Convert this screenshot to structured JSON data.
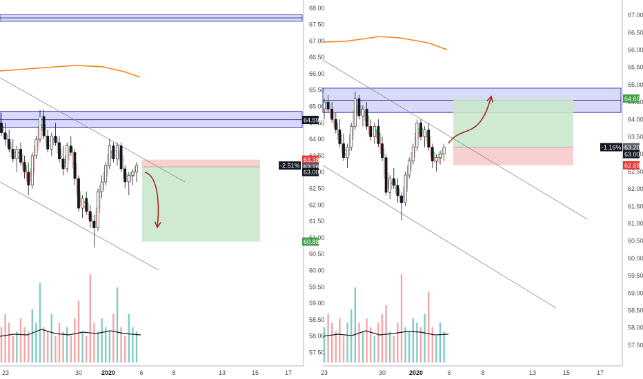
{
  "colors": {
    "up_candle": "#ffffff",
    "down_candle": "#131722",
    "zone_fill": "#b3b5f5",
    "zone_line": "#3f3fa8",
    "ma_orange": "#f57f17",
    "profit_fill": "#c8e6c9",
    "loss_fill": "#f8c8c8",
    "vol_up": "#80cbc4",
    "vol_down": "#f4a6a6",
    "arrow": "#a0281e",
    "tag_red": "#e53935",
    "tag_green": "#43a047",
    "tag_dark": "#131722",
    "tag_grey": "#5d606b"
  },
  "chart_data": [
    {
      "type": "candlestick",
      "panel": "left",
      "y_axis": {
        "ticks": [
          "68.00",
          "67.50",
          "67.00",
          "66.50",
          "66.00",
          "65.50",
          "65.00",
          "64.50",
          "64.00",
          "63.50",
          "63.00",
          "62.50",
          "62.00",
          "61.50",
          "61.00",
          "60.50",
          "60.00",
          "59.50",
          "59.00",
          "58.50",
          "58.00",
          "57.50"
        ],
        "range": [
          57.3,
          68.1
        ]
      },
      "x_axis": {
        "ticks": [
          "23",
          "30",
          "2020",
          "6",
          "8",
          "13",
          "15",
          "17"
        ]
      },
      "price_tags": [
        {
          "label": "63.38",
          "color": "tag_red"
        },
        {
          "label": "63.16",
          "color": "tag_grey"
        },
        {
          "label": "63.00",
          "color": "tag_dark"
        },
        {
          "label": "64.59",
          "color": "tag_dark"
        },
        {
          "label": "60.88",
          "color": "tag_green"
        }
      ],
      "change_label": "-2.51%",
      "resistance_zones": [
        [
          67.6,
          67.8
        ],
        [
          64.35,
          64.85
        ]
      ],
      "position": {
        "direction": "short",
        "entry": 63.16,
        "stop": 63.38,
        "target": 60.88
      },
      "candles": [
        [
          64.5,
          64.8,
          64.1,
          64.2
        ],
        [
          64.2,
          64.5,
          63.8,
          64.0
        ],
        [
          64.0,
          64.3,
          63.6,
          63.7
        ],
        [
          63.7,
          64.0,
          63.3,
          63.4
        ],
        [
          63.4,
          63.8,
          63.0,
          63.7
        ],
        [
          63.7,
          63.9,
          63.2,
          63.3
        ],
        [
          63.3,
          63.5,
          62.8,
          63.0
        ],
        [
          63.0,
          63.3,
          62.3,
          62.6
        ],
        [
          62.6,
          63.6,
          62.5,
          63.5
        ],
        [
          63.5,
          64.1,
          63.4,
          64.0
        ],
        [
          64.0,
          64.9,
          63.9,
          64.7
        ],
        [
          64.7,
          64.9,
          64.0,
          64.1
        ],
        [
          64.1,
          64.3,
          63.6,
          63.7
        ],
        [
          63.7,
          64.2,
          63.5,
          64.1
        ],
        [
          64.1,
          64.5,
          63.8,
          63.9
        ],
        [
          63.9,
          64.1,
          63.3,
          63.4
        ],
        [
          63.4,
          63.8,
          62.9,
          63.1
        ],
        [
          63.1,
          63.9,
          63.0,
          63.8
        ],
        [
          63.8,
          64.1,
          63.5,
          63.6
        ],
        [
          63.6,
          63.7,
          62.6,
          62.8
        ],
        [
          62.8,
          62.9,
          61.8,
          61.9
        ],
        [
          61.9,
          62.3,
          61.6,
          62.2
        ],
        [
          62.2,
          62.4,
          61.7,
          61.8
        ],
        [
          61.8,
          62.0,
          61.3,
          61.5
        ],
        [
          61.5,
          61.7,
          60.7,
          61.3
        ],
        [
          61.3,
          62.5,
          61.2,
          62.4
        ],
        [
          62.4,
          62.9,
          62.2,
          62.7
        ],
        [
          62.7,
          63.3,
          62.6,
          63.2
        ],
        [
          63.2,
          64.0,
          63.1,
          63.8
        ],
        [
          63.8,
          63.9,
          63.3,
          63.4
        ],
        [
          63.4,
          63.9,
          63.2,
          63.8
        ],
        [
          63.8,
          63.9,
          63.0,
          63.1
        ],
        [
          63.1,
          63.2,
          62.5,
          62.7
        ],
        [
          62.7,
          63.0,
          62.3,
          62.9
        ],
        [
          62.9,
          63.1,
          62.6,
          63.0
        ],
        [
          63.0,
          63.3,
          62.7,
          63.2
        ]
      ],
      "volume": [
        0.4,
        0.55,
        0.45,
        0.3,
        0.35,
        0.5,
        0.4,
        0.35,
        0.6,
        0.45,
        0.9,
        0.4,
        0.35,
        0.55,
        0.3,
        0.45,
        0.35,
        0.4,
        0.3,
        0.5,
        0.7,
        0.35,
        0.3,
        1.0,
        0.45,
        0.35,
        0.5,
        0.4,
        0.35,
        0.55,
        0.85,
        0.4,
        0.3,
        0.55,
        0.4,
        0.35
      ]
    },
    {
      "type": "candlestick",
      "panel": "right",
      "y_axis": {
        "ticks": [
          "67.00",
          "66.50",
          "66.00",
          "65.50",
          "65.00",
          "64.50",
          "64.00",
          "63.50",
          "63.00",
          "62.50",
          "62.00",
          "61.50",
          "61.00",
          "60.50",
          "60.00",
          "59.50",
          "59.00",
          "58.50",
          "58.00",
          "57.50"
        ],
        "range": [
          57.2,
          67.2
        ]
      },
      "x_axis": {
        "ticks": [
          "23",
          "30",
          "2020",
          "6",
          "8",
          "13",
          "15",
          "17"
        ]
      },
      "price_tags": [
        {
          "label": "64.60",
          "color": "tag_green"
        },
        {
          "label": "63.20",
          "color": "tag_grey"
        },
        {
          "label": "63.00",
          "color": "tag_dark"
        },
        {
          "label": "62.68",
          "color": "tag_red"
        }
      ],
      "change_label": "-1.16%",
      "resistance_zones": [
        [
          64.2,
          64.9
        ]
      ],
      "position": {
        "direction": "long",
        "entry": 63.2,
        "stop": 62.68,
        "target": 64.6
      },
      "candles": [
        [
          64.3,
          64.6,
          64.0,
          64.5
        ],
        [
          64.5,
          64.7,
          64.2,
          64.3
        ],
        [
          64.3,
          64.5,
          63.9,
          64.0
        ],
        [
          64.0,
          64.2,
          63.6,
          63.7
        ],
        [
          63.7,
          64.0,
          63.2,
          63.3
        ],
        [
          63.3,
          63.6,
          62.8,
          62.9
        ],
        [
          62.9,
          63.3,
          62.6,
          63.2
        ],
        [
          63.2,
          63.9,
          63.1,
          63.8
        ],
        [
          63.8,
          64.8,
          63.7,
          64.6
        ],
        [
          64.6,
          64.7,
          64.0,
          64.1
        ],
        [
          64.1,
          64.4,
          63.8,
          64.3
        ],
        [
          64.3,
          64.5,
          63.7,
          63.8
        ],
        [
          63.8,
          64.0,
          63.4,
          63.5
        ],
        [
          63.5,
          63.9,
          63.3,
          63.8
        ],
        [
          63.8,
          64.0,
          63.2,
          63.3
        ],
        [
          63.3,
          63.5,
          62.8,
          62.9
        ],
        [
          62.9,
          63.0,
          61.8,
          61.9
        ],
        [
          61.9,
          62.4,
          61.7,
          62.3
        ],
        [
          62.3,
          62.6,
          62.0,
          62.1
        ],
        [
          62.1,
          62.3,
          61.6,
          61.8
        ],
        [
          61.8,
          61.9,
          61.1,
          61.6
        ],
        [
          61.6,
          62.5,
          61.5,
          62.4
        ],
        [
          62.4,
          62.9,
          62.3,
          62.8
        ],
        [
          62.8,
          63.3,
          62.7,
          63.2
        ],
        [
          63.2,
          64.0,
          63.1,
          63.9
        ],
        [
          63.9,
          64.0,
          63.4,
          63.5
        ],
        [
          63.5,
          63.8,
          63.2,
          63.7
        ],
        [
          63.7,
          63.9,
          63.1,
          63.2
        ],
        [
          63.2,
          63.3,
          62.6,
          62.8
        ],
        [
          62.8,
          63.0,
          62.5,
          62.9
        ],
        [
          62.9,
          63.1,
          62.7,
          63.0
        ],
        [
          63.0,
          63.3,
          62.8,
          63.2
        ]
      ],
      "volume": [
        0.4,
        0.55,
        0.45,
        0.35,
        0.5,
        0.3,
        0.45,
        0.6,
        0.85,
        0.45,
        0.35,
        0.5,
        0.4,
        0.3,
        0.45,
        0.55,
        0.65,
        0.35,
        0.3,
        0.45,
        1.0,
        0.4,
        0.35,
        0.5,
        0.45,
        0.4,
        0.55,
        0.8,
        0.4,
        0.3,
        0.45,
        0.35
      ]
    }
  ]
}
